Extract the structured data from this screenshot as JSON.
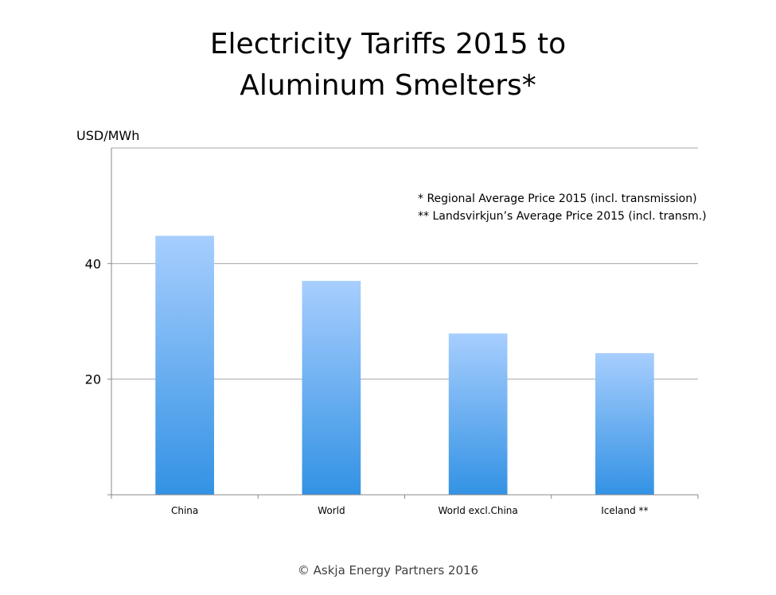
{
  "title_lines": [
    "Electricity Tariffs 2015 to",
    "Aluminum Smelters*"
  ],
  "footer": "© Askja Energy Partners 2016",
  "chart_data": {
    "type": "bar",
    "title": "Electricity Tariffs 2015 to Aluminum Smelters*",
    "ylabel": "USD/MWh",
    "xlabel": "",
    "categories": [
      "China",
      "World",
      "World excl.China",
      "Iceland **"
    ],
    "values": [
      44.8,
      37.0,
      27.9,
      24.5
    ],
    "ylim": [
      0,
      60
    ],
    "yticks": [
      20,
      40
    ],
    "grid": true,
    "annotations": [
      "* Regional Average Price 2015 (incl. transmission)",
      "** Landsvirkjun’s Average Price 2015 (incl. transm.)"
    ],
    "bar_color_top": "#a7cefe",
    "bar_color_bottom": "#3392e4",
    "grid_color": "#a6a6a6"
  }
}
